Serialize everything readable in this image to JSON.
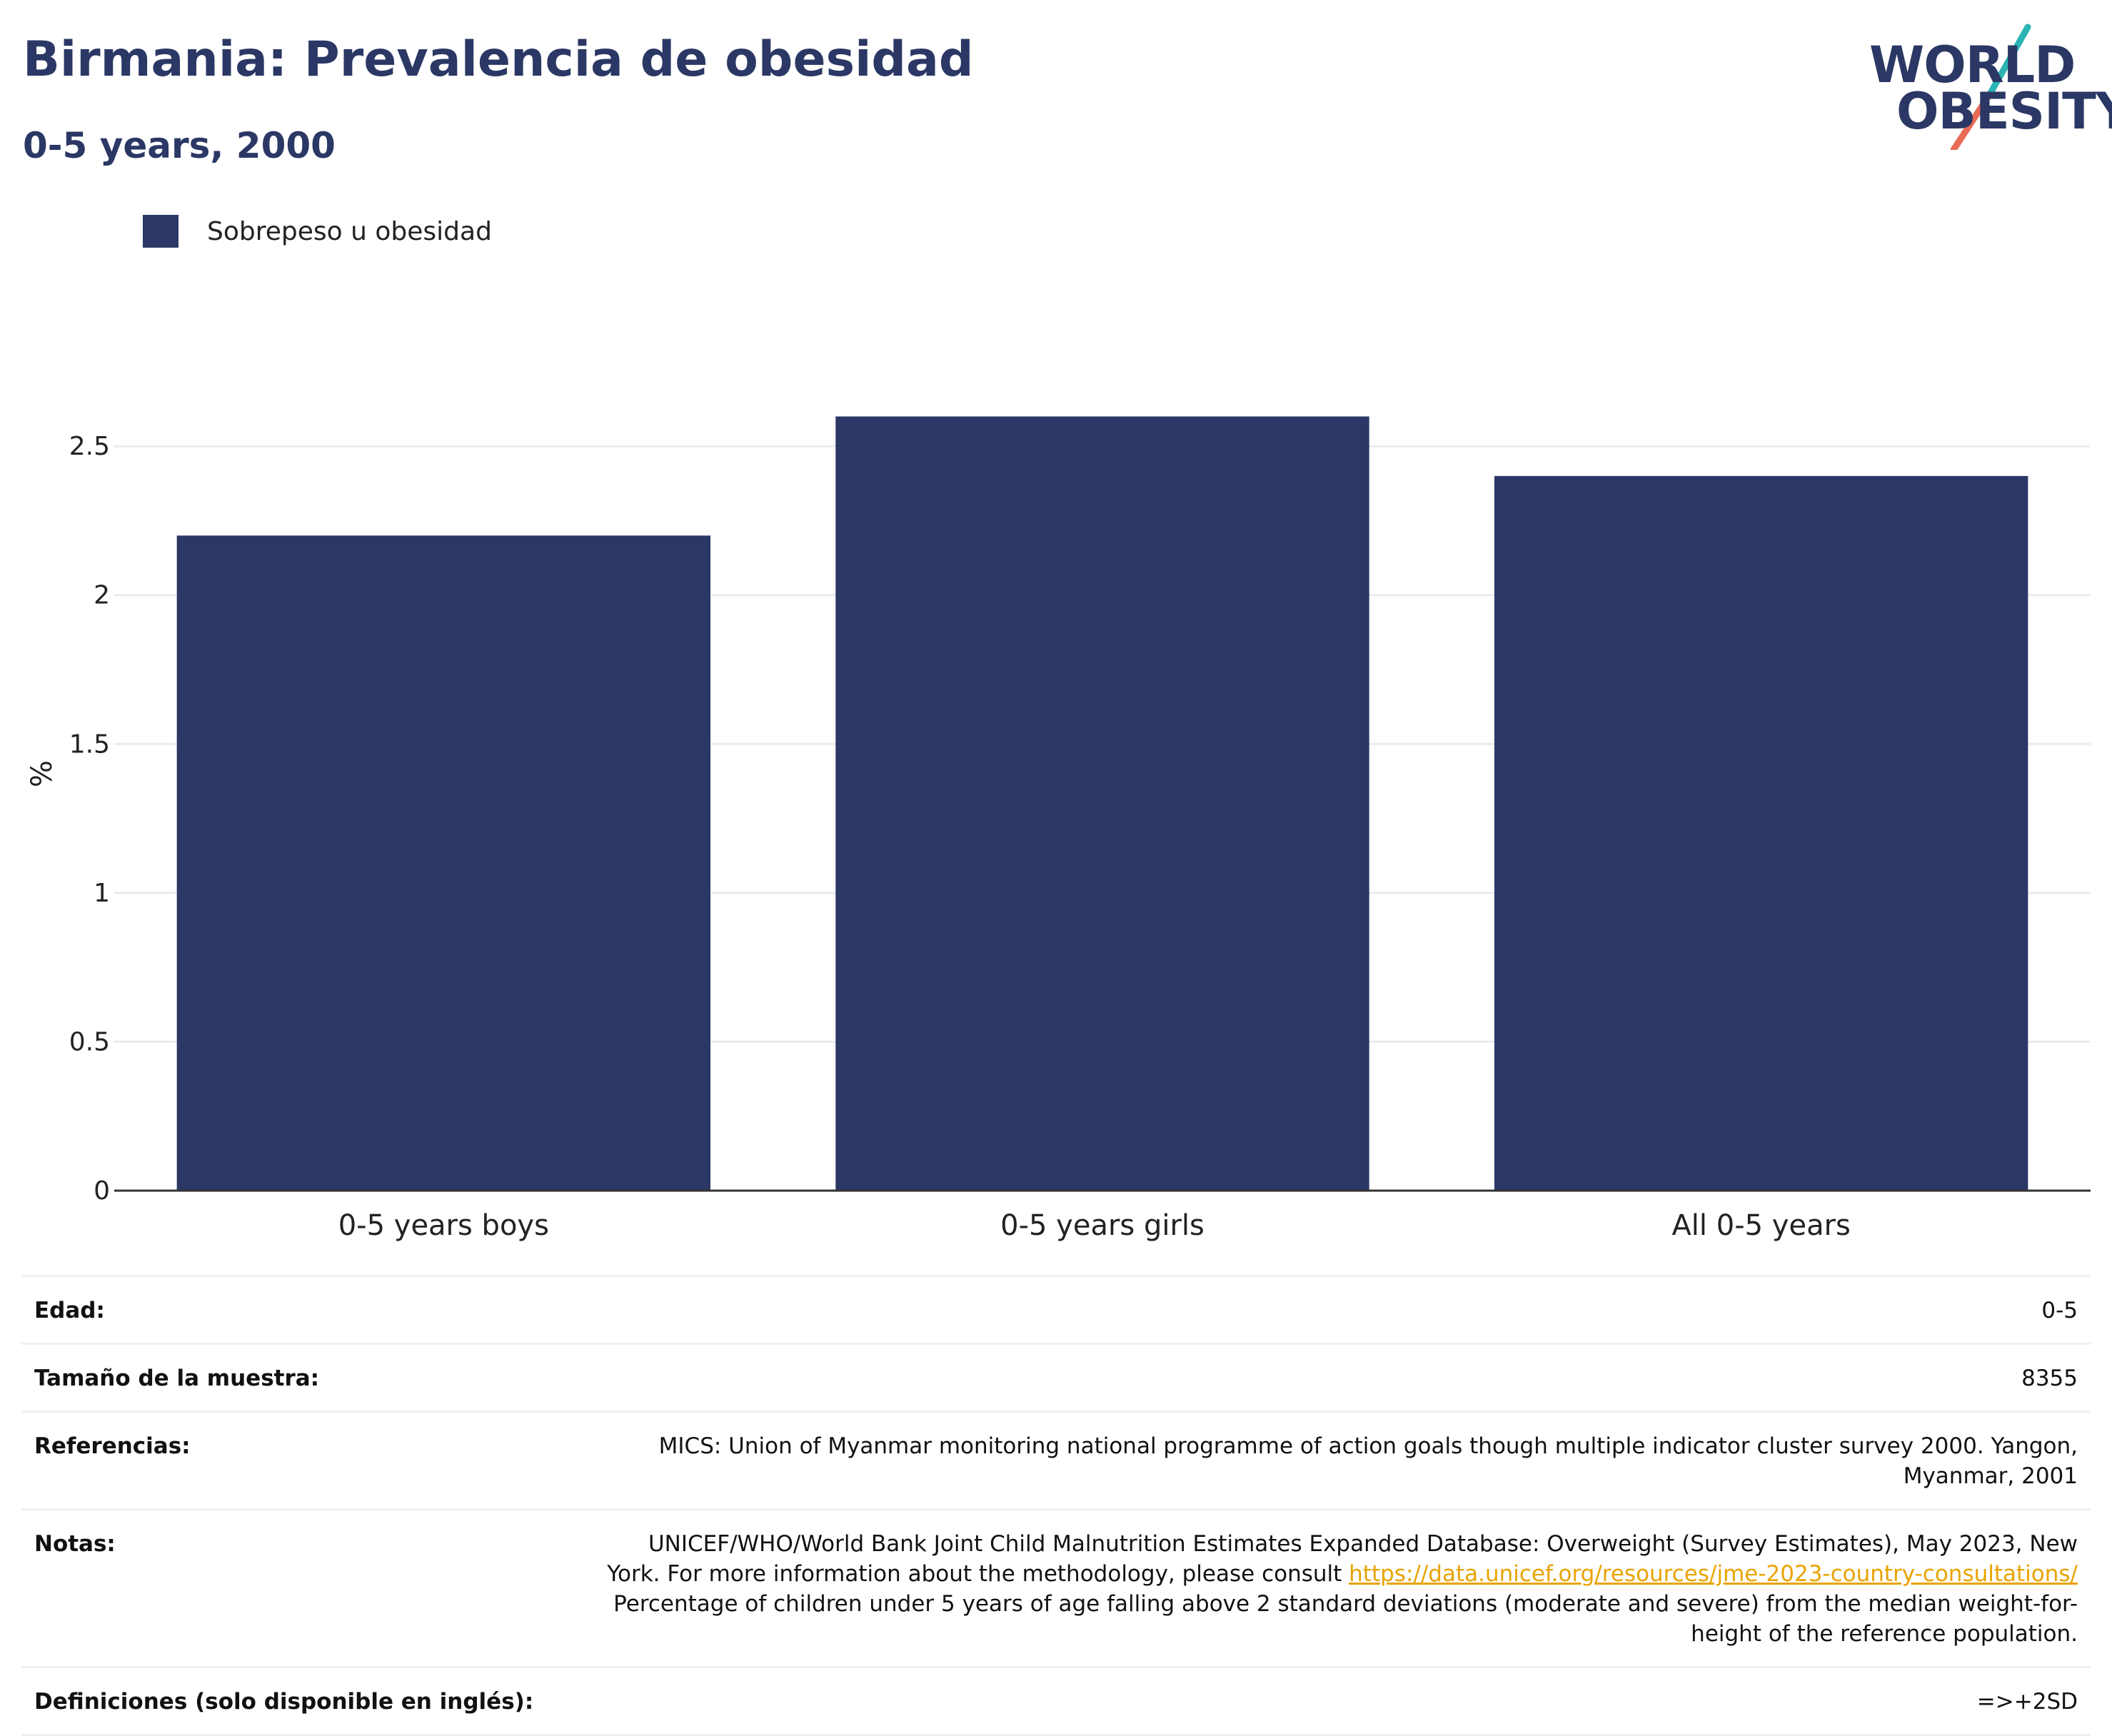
{
  "title": "Birmania: Prevalencia de obesidad",
  "subtitle": "0-5 years, 2000",
  "logo": {
    "line1": "WORLD",
    "line2": "OBESITY"
  },
  "colors": {
    "bar": "#2b3764",
    "accent_teal": "#2bb4b4",
    "accent_coral": "#e96a55",
    "link": "#e8a400"
  },
  "chart_data": {
    "type": "bar",
    "categories": [
      "0-5 years boys",
      "0-5 years girls",
      "All 0-5 years"
    ],
    "series": [
      {
        "name": "Sobrepeso u obesidad",
        "values": [
          2.2,
          2.6,
          2.4
        ]
      }
    ],
    "ylabel": "%",
    "xlabel": "",
    "ylim": [
      0,
      2.8
    ],
    "yticks": [
      0,
      0.5,
      1,
      1.5,
      2,
      2.5
    ],
    "ytick_labels": [
      "0",
      "0.5",
      "1",
      "1.5",
      "2",
      "2.5"
    ],
    "grid": true,
    "legend_position": "top-left"
  },
  "meta": {
    "rows": [
      {
        "key": "Edad:",
        "value": "0-5"
      },
      {
        "key": "Tamaño de la muestra:",
        "value": "8355"
      },
      {
        "key": "Referencias:",
        "value": "MICS: Union of Myanmar monitoring national programme of action goals though multiple indicator cluster survey 2000. Yangon, Myanmar, 2001"
      },
      {
        "key": "Notas:",
        "value": "UNICEF/WHO/World Bank Joint Child Malnutrition Estimates Expanded Database: Overweight (Survey Estimates), May 2023, New York. For more information about the methodology, please consult ",
        "link": "https://data.unicef.org/resources/jme-2023-country-consultations/",
        "value_after": " Percentage of children under 5 years of age falling above 2 standard deviations (moderate and severe) from the median weight-for-height of the reference population."
      },
      {
        "key": "Definiciones (solo disponible en inglés):",
        "value": "=>+2SD"
      }
    ]
  }
}
